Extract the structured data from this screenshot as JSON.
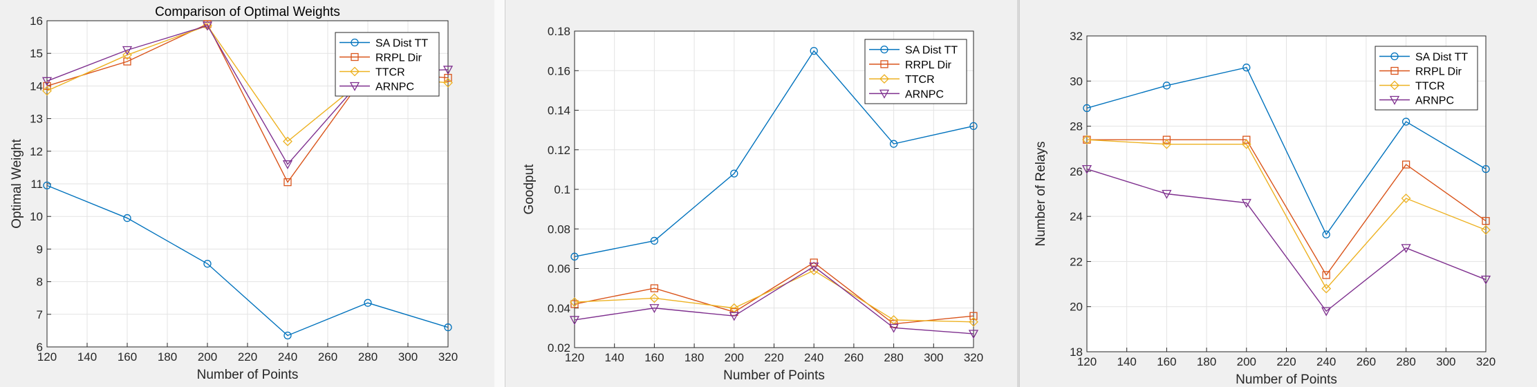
{
  "chart_data": [
    {
      "type": "line",
      "title": "Comparison of Optimal Weights",
      "xlabel": "Number of Points",
      "ylabel": "Optimal Weight",
      "x": [
        120,
        160,
        200,
        240,
        280,
        320
      ],
      "xlim": [
        120,
        320
      ],
      "ylim": [
        6,
        16
      ],
      "xticks": [
        120,
        140,
        160,
        180,
        200,
        220,
        240,
        260,
        280,
        300,
        320
      ],
      "yticks": [
        6,
        7,
        8,
        9,
        10,
        11,
        12,
        13,
        14,
        15,
        16
      ],
      "grid": true,
      "legend_position": "top-right",
      "series": [
        {
          "name": "SA Dist TT",
          "color": "#0072BD",
          "marker": "circle",
          "values": [
            10.95,
            9.95,
            8.55,
            6.35,
            7.35,
            6.6
          ]
        },
        {
          "name": "RRPL Dir",
          "color": "#D95319",
          "marker": "square",
          "values": [
            14.0,
            14.75,
            15.9,
            11.05,
            14.45,
            14.25
          ]
        },
        {
          "name": "TTCR",
          "color": "#EDB120",
          "marker": "diamond",
          "values": [
            13.85,
            14.95,
            15.85,
            12.3,
            14.3,
            14.1
          ]
        },
        {
          "name": "ARNPC",
          "color": "#7E2F8E",
          "marker": "triangle-down",
          "values": [
            14.15,
            15.1,
            15.85,
            11.6,
            14.4,
            14.5
          ]
        }
      ]
    },
    {
      "type": "line",
      "title": "",
      "xlabel": "Number of Points",
      "ylabel": "Goodput",
      "x": [
        120,
        160,
        200,
        240,
        280,
        320
      ],
      "xlim": [
        120,
        320
      ],
      "ylim": [
        0.02,
        0.18
      ],
      "xticks": [
        120,
        140,
        160,
        180,
        200,
        220,
        240,
        260,
        280,
        300,
        320
      ],
      "yticks": [
        0.02,
        0.04,
        0.06,
        0.08,
        0.1,
        0.12,
        0.14,
        0.16,
        0.18
      ],
      "grid": true,
      "legend_position": "top-right",
      "series": [
        {
          "name": "SA Dist TT",
          "color": "#0072BD",
          "marker": "circle",
          "values": [
            0.066,
            0.074,
            0.108,
            0.17,
            0.123,
            0.132
          ]
        },
        {
          "name": "RRPL Dir",
          "color": "#D95319",
          "marker": "square",
          "values": [
            0.042,
            0.05,
            0.038,
            0.063,
            0.032,
            0.036
          ]
        },
        {
          "name": "TTCR",
          "color": "#EDB120",
          "marker": "diamond",
          "values": [
            0.043,
            0.045,
            0.04,
            0.059,
            0.034,
            0.033
          ]
        },
        {
          "name": "ARNPC",
          "color": "#7E2F8E",
          "marker": "triangle-down",
          "values": [
            0.034,
            0.04,
            0.036,
            0.061,
            0.03,
            0.027
          ]
        }
      ]
    },
    {
      "type": "line",
      "title": "",
      "xlabel": "Number of Points",
      "ylabel": "Number of Relays",
      "x": [
        120,
        160,
        200,
        240,
        280,
        320
      ],
      "xlim": [
        120,
        320
      ],
      "ylim": [
        18,
        32
      ],
      "xticks": [
        120,
        140,
        160,
        180,
        200,
        220,
        240,
        260,
        280,
        300,
        320
      ],
      "yticks": [
        18,
        20,
        22,
        24,
        26,
        28,
        30,
        32
      ],
      "grid": true,
      "legend_position": "top-right",
      "series": [
        {
          "name": "SA Dist TT",
          "color": "#0072BD",
          "marker": "circle",
          "values": [
            28.8,
            29.8,
            30.6,
            23.2,
            28.2,
            26.1
          ]
        },
        {
          "name": "RRPL Dir",
          "color": "#D95319",
          "marker": "square",
          "values": [
            27.4,
            27.4,
            27.4,
            21.4,
            26.3,
            23.8
          ]
        },
        {
          "name": "TTCR",
          "color": "#EDB120",
          "marker": "diamond",
          "values": [
            27.4,
            27.2,
            27.2,
            20.8,
            24.8,
            23.4
          ]
        },
        {
          "name": "ARNPC",
          "color": "#7E2F8E",
          "marker": "triangle-down",
          "values": [
            26.1,
            25.0,
            24.6,
            19.8,
            22.6,
            21.2
          ]
        }
      ]
    }
  ]
}
